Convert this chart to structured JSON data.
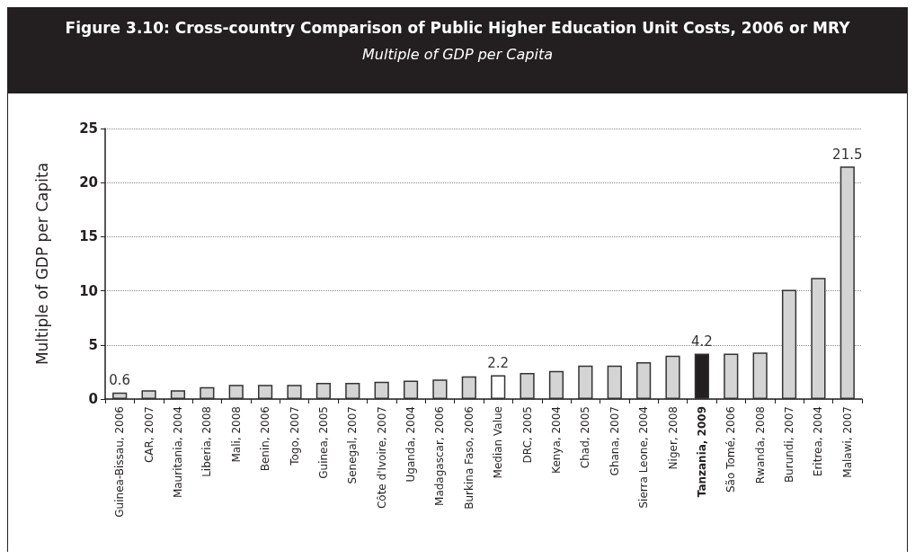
{
  "chart_data": {
    "type": "bar",
    "title": "Figure 3.10: Cross-country Comparison of Public Higher Education Unit Costs, 2006 or MRY",
    "subtitle": "Multiple of GDP per Capita",
    "ylabel": "Multiple of GDP per Capita",
    "categories": [
      "Guinea-Bissau, 2006",
      "CAR, 2007",
      "Mauritania, 2004",
      "Liberia, 2008",
      "Mali, 2008",
      "Benin, 2006",
      "Togo, 2007",
      "Guinea, 2005",
      "Senegal, 2007",
      "Côte d'Ivoire, 2007",
      "Uganda, 2004",
      "Madagascar, 2006",
      "Burkina Faso, 2006",
      "Median Value",
      "DRC, 2005",
      "Kenya, 2004",
      "Chad, 2005",
      "Ghana, 2007",
      "Sierra Leone, 2004",
      "Niger, 2008",
      "Tanzania, 2009",
      "São Tomé, 2006",
      "Rwanda, 2008",
      "Burundi, 2007",
      "Eritrea, 2004",
      "Malawi, 2007"
    ],
    "values": [
      0.6,
      0.8,
      0.8,
      1.1,
      1.3,
      1.3,
      1.3,
      1.5,
      1.5,
      1.6,
      1.7,
      1.8,
      2.1,
      2.2,
      2.4,
      2.6,
      3.1,
      3.1,
      3.4,
      4.0,
      4.2,
      4.2,
      4.3,
      10.1,
      11.2,
      21.5
    ],
    "value_labels": [
      "0.6",
      null,
      null,
      null,
      null,
      null,
      null,
      null,
      null,
      null,
      null,
      null,
      null,
      "2.2",
      null,
      null,
      null,
      null,
      null,
      null,
      "4.2",
      null,
      null,
      null,
      null,
      "21.5"
    ],
    "colors": [
      "#d4d4d4",
      "#d4d4d4",
      "#d4d4d4",
      "#d4d4d4",
      "#d4d4d4",
      "#d4d4d4",
      "#d4d4d4",
      "#d4d4d4",
      "#d4d4d4",
      "#d4d4d4",
      "#d4d4d4",
      "#d4d4d4",
      "#d4d4d4",
      "#ffffff",
      "#d4d4d4",
      "#d4d4d4",
      "#d4d4d4",
      "#d4d4d4",
      "#d4d4d4",
      "#d4d4d4",
      "#231f20",
      "#d4d4d4",
      "#d4d4d4",
      "#d4d4d4",
      "#d4d4d4",
      "#d4d4d4"
    ],
    "ylim": [
      0,
      25
    ],
    "yticks": [
      0,
      5,
      10,
      15,
      20,
      25
    ],
    "grid": "y"
  }
}
